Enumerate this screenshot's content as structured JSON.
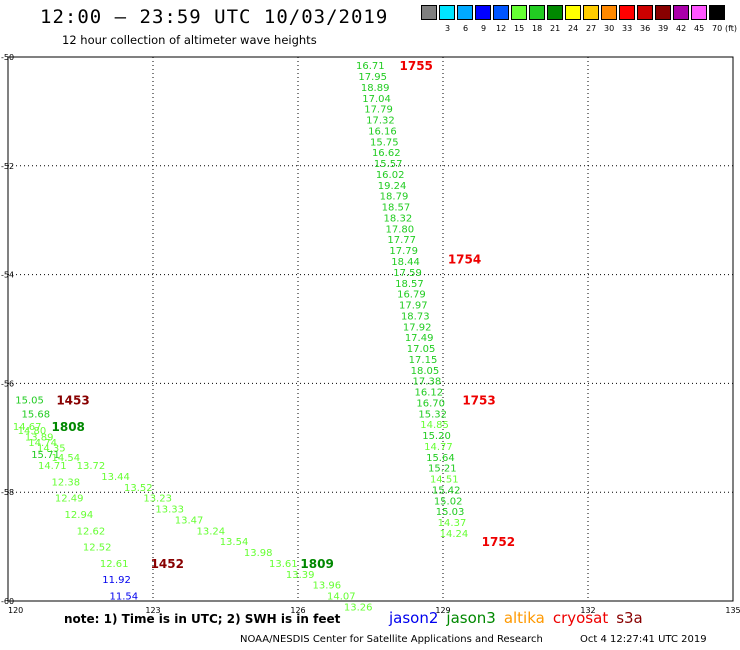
{
  "title": "12:00 – 23:59 UTC 10/03/2019",
  "subtitle": "12 hour collection of altimeter wave heights",
  "color_scale": {
    "unit": "(ft)",
    "swatches": [
      {
        "label": "",
        "color": "#7f7f7f"
      },
      {
        "label": "3",
        "color": "#00e5ff"
      },
      {
        "label": "6",
        "color": "#00aaff"
      },
      {
        "label": "9",
        "color": "#0000ff"
      },
      {
        "label": "12",
        "color": "#0055ff"
      },
      {
        "label": "15",
        "color": "#66ff33"
      },
      {
        "label": "18",
        "color": "#22cc22"
      },
      {
        "label": "21",
        "color": "#008800"
      },
      {
        "label": "24",
        "color": "#ffff00"
      },
      {
        "label": "27",
        "color": "#ffcc00"
      },
      {
        "label": "30",
        "color": "#ff8800"
      },
      {
        "label": "33",
        "color": "#ff0000"
      },
      {
        "label": "36",
        "color": "#cc0000"
      },
      {
        "label": "39",
        "color": "#880000"
      },
      {
        "label": "42",
        "color": "#aa00aa"
      },
      {
        "label": "45",
        "color": "#ff55ff"
      },
      {
        "label": "70",
        "color": "#000000"
      }
    ]
  },
  "note": "note:  1) Time is in UTC;  2) SWH is in feet",
  "satellites": [
    {
      "name": "jason2",
      "color": "#0000ee"
    },
    {
      "name": "jason3",
      "color": "#008800"
    },
    {
      "name": "altika",
      "color": "#ff9900"
    },
    {
      "name": "cryosat",
      "color": "#ee0000"
    },
    {
      "name": "s3a",
      "color": "#880000"
    }
  ],
  "credit": "NOAA/NESDIS Center for Satellite Applications and Research",
  "timestamp": "Oct  4 12:27:41 UTC 2019",
  "chart_data": {
    "type": "scatter",
    "xlim": [
      120,
      135
    ],
    "ylim": [
      -60,
      -50
    ],
    "xticks": [
      "120",
      "123",
      "126",
      "129",
      "132",
      "135"
    ],
    "yticks": [
      "-50",
      "-52",
      "-54",
      "-56",
      "-58",
      "-60"
    ],
    "grid": true,
    "point_labels": [
      {
        "x": 127.2,
        "y": -50.15,
        "text": "16.71",
        "color": "#22cc22"
      },
      {
        "x": 127.25,
        "y": -50.35,
        "text": "17.95",
        "color": "#22cc22"
      },
      {
        "x": 127.3,
        "y": -50.55,
        "text": "18.89",
        "color": "#22cc22"
      },
      {
        "x": 127.33,
        "y": -50.75,
        "text": "17.04",
        "color": "#22cc22"
      },
      {
        "x": 127.37,
        "y": -50.95,
        "text": "17.79",
        "color": "#22cc22"
      },
      {
        "x": 127.41,
        "y": -51.15,
        "text": "17.32",
        "color": "#22cc22"
      },
      {
        "x": 127.45,
        "y": -51.35,
        "text": "16.16",
        "color": "#22cc22"
      },
      {
        "x": 127.49,
        "y": -51.55,
        "text": "15.75",
        "color": "#22cc22"
      },
      {
        "x": 127.53,
        "y": -51.75,
        "text": "16.62",
        "color": "#22cc22"
      },
      {
        "x": 127.57,
        "y": -51.95,
        "text": "15.57",
        "color": "#22cc22"
      },
      {
        "x": 127.61,
        "y": -52.15,
        "text": "16.02",
        "color": "#22cc22"
      },
      {
        "x": 127.65,
        "y": -52.35,
        "text": "19.24",
        "color": "#22cc22"
      },
      {
        "x": 127.69,
        "y": -52.55,
        "text": "18.79",
        "color": "#22cc22"
      },
      {
        "x": 127.73,
        "y": -52.75,
        "text": "18.57",
        "color": "#22cc22"
      },
      {
        "x": 127.77,
        "y": -52.95,
        "text": "18.32",
        "color": "#22cc22"
      },
      {
        "x": 127.81,
        "y": -53.15,
        "text": "17.80",
        "color": "#22cc22"
      },
      {
        "x": 127.85,
        "y": -53.35,
        "text": "17.77",
        "color": "#22cc22"
      },
      {
        "x": 127.89,
        "y": -53.55,
        "text": "17.79",
        "color": "#22cc22"
      },
      {
        "x": 127.93,
        "y": -53.75,
        "text": "18.44",
        "color": "#22cc22"
      },
      {
        "x": 127.97,
        "y": -53.95,
        "text": "17.59",
        "color": "#22cc22"
      },
      {
        "x": 128.01,
        "y": -54.15,
        "text": "18.57",
        "color": "#22cc22"
      },
      {
        "x": 128.05,
        "y": -54.35,
        "text": "16.79",
        "color": "#22cc22"
      },
      {
        "x": 128.09,
        "y": -54.55,
        "text": "17.97",
        "color": "#22cc22"
      },
      {
        "x": 128.13,
        "y": -54.75,
        "text": "18.73",
        "color": "#22cc22"
      },
      {
        "x": 128.17,
        "y": -54.95,
        "text": "17.92",
        "color": "#22cc22"
      },
      {
        "x": 128.21,
        "y": -55.15,
        "text": "17.49",
        "color": "#22cc22"
      },
      {
        "x": 128.25,
        "y": -55.35,
        "text": "17.05",
        "color": "#22cc22"
      },
      {
        "x": 128.29,
        "y": -55.55,
        "text": "17.15",
        "color": "#22cc22"
      },
      {
        "x": 128.33,
        "y": -55.75,
        "text": "18.05",
        "color": "#22cc22"
      },
      {
        "x": 128.37,
        "y": -55.95,
        "text": "17.38",
        "color": "#22cc22"
      },
      {
        "x": 128.41,
        "y": -56.15,
        "text": "16.12",
        "color": "#22cc22"
      },
      {
        "x": 128.45,
        "y": -56.35,
        "text": "16.70",
        "color": "#22cc22"
      },
      {
        "x": 128.49,
        "y": -56.55,
        "text": "15.32",
        "color": "#22cc22"
      },
      {
        "x": 128.53,
        "y": -56.75,
        "text": "14.85",
        "color": "#66ff33"
      },
      {
        "x": 128.57,
        "y": -56.95,
        "text": "15.20",
        "color": "#22cc22"
      },
      {
        "x": 128.61,
        "y": -57.15,
        "text": "14.77",
        "color": "#66ff33"
      },
      {
        "x": 128.65,
        "y": -57.35,
        "text": "15.64",
        "color": "#22cc22"
      },
      {
        "x": 128.69,
        "y": -57.55,
        "text": "15.21",
        "color": "#22cc22"
      },
      {
        "x": 128.73,
        "y": -57.75,
        "text": "14.51",
        "color": "#66ff33"
      },
      {
        "x": 128.77,
        "y": -57.95,
        "text": "15.42",
        "color": "#22cc22"
      },
      {
        "x": 128.81,
        "y": -58.15,
        "text": "15.02",
        "color": "#22cc22"
      },
      {
        "x": 128.85,
        "y": -58.35,
        "text": "15.03",
        "color": "#22cc22"
      },
      {
        "x": 128.89,
        "y": -58.55,
        "text": "14.37",
        "color": "#66ff33"
      },
      {
        "x": 128.93,
        "y": -58.75,
        "text": "14.24",
        "color": "#66ff33"
      },
      {
        "x": 120.15,
        "y": -56.3,
        "text": "15.05",
        "color": "#22cc22"
      },
      {
        "x": 120.28,
        "y": -56.55,
        "text": "15.68",
        "color": "#22cc22"
      },
      {
        "x": 120.1,
        "y": -56.78,
        "text": "14.67",
        "color": "#66ff33"
      },
      {
        "x": 120.2,
        "y": -56.86,
        "text": "14.80",
        "color": "#66ff33"
      },
      {
        "x": 120.35,
        "y": -56.98,
        "text": "13.89",
        "color": "#66ff33"
      },
      {
        "x": 120.42,
        "y": -57.08,
        "text": "14.74",
        "color": "#66ff33"
      },
      {
        "x": 120.6,
        "y": -57.18,
        "text": "14.35",
        "color": "#66ff33"
      },
      {
        "x": 120.48,
        "y": -57.3,
        "text": "15.71",
        "color": "#22cc22"
      },
      {
        "x": 120.9,
        "y": -57.35,
        "text": "14.54",
        "color": "#66ff33"
      },
      {
        "x": 120.62,
        "y": -57.5,
        "text": "14.71",
        "color": "#66ff33"
      },
      {
        "x": 121.42,
        "y": -57.5,
        "text": "13.72",
        "color": "#66ff33"
      },
      {
        "x": 121.93,
        "y": -57.7,
        "text": "13.44",
        "color": "#66ff33"
      },
      {
        "x": 120.9,
        "y": -57.8,
        "text": "12.38",
        "color": "#66ff33"
      },
      {
        "x": 122.4,
        "y": -57.9,
        "text": "13.52",
        "color": "#66ff33"
      },
      {
        "x": 122.8,
        "y": -58.1,
        "text": "13.23",
        "color": "#66ff33"
      },
      {
        "x": 120.97,
        "y": -58.1,
        "text": "12.49",
        "color": "#66ff33"
      },
      {
        "x": 123.05,
        "y": -58.3,
        "text": "13.33",
        "color": "#66ff33"
      },
      {
        "x": 123.45,
        "y": -58.5,
        "text": "13.47",
        "color": "#66ff33"
      },
      {
        "x": 121.17,
        "y": -58.4,
        "text": "12.94",
        "color": "#66ff33"
      },
      {
        "x": 123.9,
        "y": -58.7,
        "text": "13.24",
        "color": "#66ff33"
      },
      {
        "x": 121.42,
        "y": -58.7,
        "text": "12.62",
        "color": "#66ff33"
      },
      {
        "x": 124.38,
        "y": -58.9,
        "text": "13.54",
        "color": "#66ff33"
      },
      {
        "x": 124.88,
        "y": -59.1,
        "text": "13.98",
        "color": "#66ff33"
      },
      {
        "x": 121.55,
        "y": -59.0,
        "text": "12.52",
        "color": "#66ff33"
      },
      {
        "x": 125.4,
        "y": -59.3,
        "text": "13.61",
        "color": "#66ff33"
      },
      {
        "x": 121.9,
        "y": -59.3,
        "text": "12.61",
        "color": "#66ff33"
      },
      {
        "x": 125.75,
        "y": -59.5,
        "text": "13.39",
        "color": "#66ff33"
      },
      {
        "x": 126.3,
        "y": -59.7,
        "text": "13.96",
        "color": "#66ff33"
      },
      {
        "x": 121.95,
        "y": -59.6,
        "text": "11.92",
        "color": "#0000ee"
      },
      {
        "x": 126.6,
        "y": -59.9,
        "text": "14.07",
        "color": "#66ff33"
      },
      {
        "x": 122.1,
        "y": -59.9,
        "text": "11.54",
        "color": "#0000ee"
      },
      {
        "x": 126.95,
        "y": -60.1,
        "text": "13.26",
        "color": "#66ff33"
      }
    ],
    "time_labels": [
      {
        "x": 128.1,
        "y": -50.15,
        "text": "1755",
        "color": "#ee0000"
      },
      {
        "x": 129.1,
        "y": -53.7,
        "text": "1754",
        "color": "#ee0000"
      },
      {
        "x": 129.4,
        "y": -56.3,
        "text": "1753",
        "color": "#ee0000"
      },
      {
        "x": 129.8,
        "y": -58.9,
        "text": "1752",
        "color": "#ee0000"
      },
      {
        "x": 121.0,
        "y": -56.3,
        "text": "1453",
        "color": "#880000"
      },
      {
        "x": 120.9,
        "y": -56.78,
        "text": "1808",
        "color": "#008800"
      },
      {
        "x": 122.95,
        "y": -59.3,
        "text": "1452",
        "color": "#880000"
      },
      {
        "x": 126.05,
        "y": -59.3,
        "text": "1809",
        "color": "#008800"
      }
    ]
  }
}
